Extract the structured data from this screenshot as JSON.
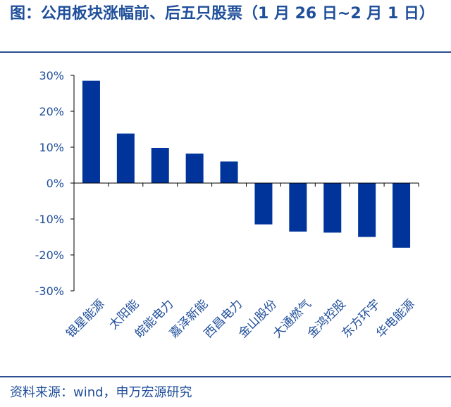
{
  "figure": {
    "title": "图：公用板块涨幅前、后五只股票（1 月 26 日~2 月 1 日）",
    "source": "资料来源：wind，申万宏源研究"
  },
  "colors": {
    "bar": "#00349b",
    "text": "#1f4e9a",
    "axis": "#000000",
    "rule": "#2c4f8f"
  },
  "chart_data": {
    "type": "bar",
    "title": "图：公用板块涨幅前、后五只股票（1 月 26 日~2 月 1 日）",
    "xlabel": "",
    "ylabel": "",
    "categories": [
      "银星能源",
      "太阳能",
      "皖能电力",
      "嘉泽新能",
      "西昌电力",
      "金山股份",
      "大通燃气",
      "金鸿控股",
      "东方环宇",
      "华电能源"
    ],
    "values": [
      28.5,
      13.8,
      9.8,
      8.2,
      6.0,
      -11.5,
      -13.5,
      -13.8,
      -15.0,
      -18.0
    ],
    "value_format": "percent",
    "ylim": [
      -30,
      30
    ],
    "yticks": [
      30,
      20,
      10,
      0,
      -10,
      -20,
      -30
    ],
    "ytick_labels": [
      "30%",
      "20%",
      "10%",
      "0%",
      "-10%",
      "-20%",
      "-30%"
    ],
    "grid": false,
    "legend": "none"
  }
}
